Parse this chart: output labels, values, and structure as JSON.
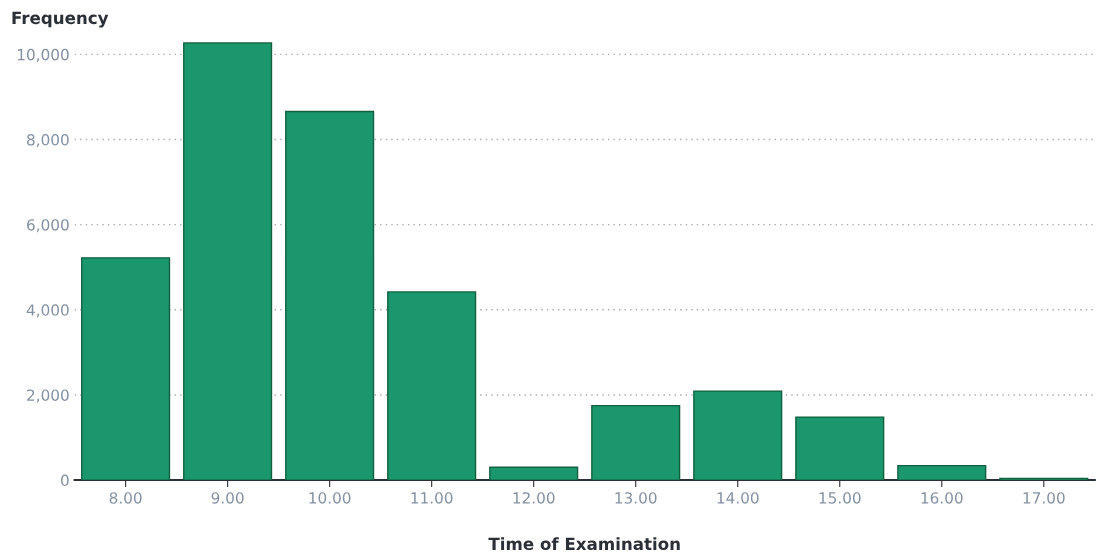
{
  "chart_data": {
    "type": "bar",
    "xlabel": "Time of Examination",
    "ylabel": "Frequency",
    "categories": [
      "8.00",
      "9.00",
      "10.00",
      "11.00",
      "12.00",
      "13.00",
      "14.00",
      "15.00",
      "16.00",
      "17.00"
    ],
    "values": [
      5220,
      10270,
      8660,
      4420,
      300,
      1750,
      2090,
      1480,
      340,
      40
    ],
    "color": "#1a976d",
    "ylim": [
      0,
      10300
    ],
    "yticks": [
      {
        "value": 0,
        "label": "0"
      },
      {
        "value": 2000,
        "label": "2,000"
      },
      {
        "value": 4000,
        "label": "4,000"
      },
      {
        "value": 6000,
        "label": "6,000"
      },
      {
        "value": 8000,
        "label": "8,000"
      },
      {
        "value": 10000,
        "label": "10,000"
      }
    ],
    "grid": "y"
  }
}
